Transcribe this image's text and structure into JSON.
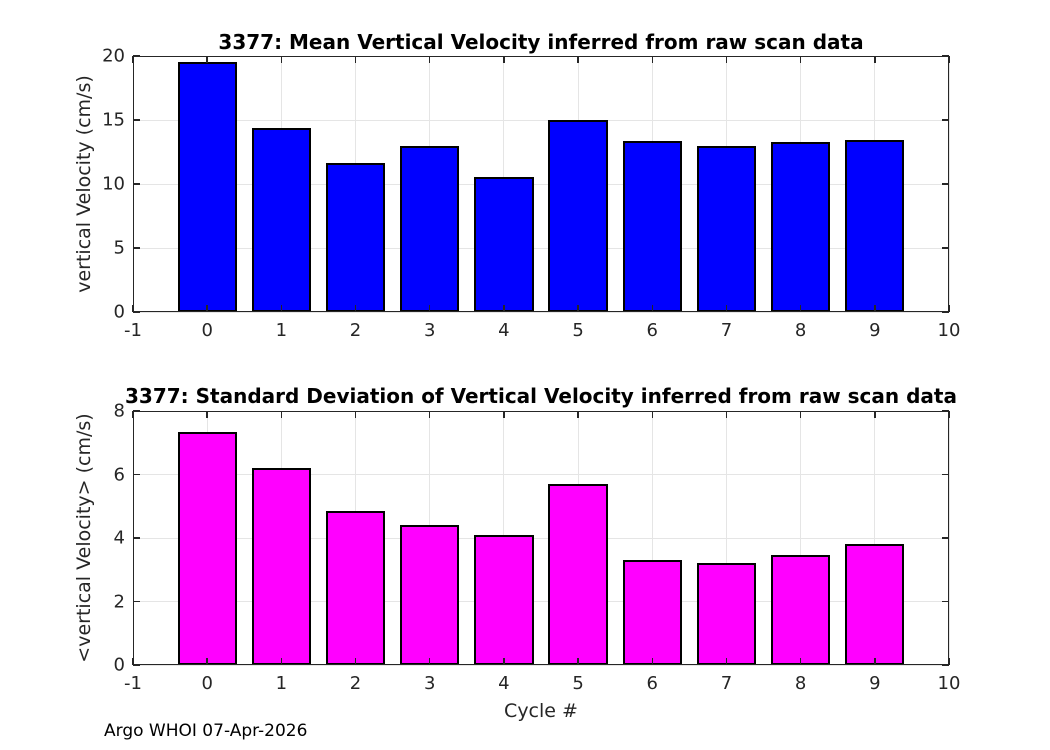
{
  "figure": {
    "footer": "Argo WHOI 07-Apr-2026",
    "background": "#ffffff"
  },
  "colors": {
    "axis": "#262626",
    "grid": "#e5e5e5",
    "tick_label": "#262626",
    "title": "#000000",
    "mean_bar": "#0000ff",
    "std_bar": "#ff00ff",
    "bar_edge": "#000000"
  },
  "chart_data": [
    {
      "type": "bar",
      "title": "3377: Mean Vertical Velocity inferred from raw scan data",
      "ylabel": "vertical Velocity (cm/s)",
      "xlabel": "",
      "categories": [
        0,
        1,
        2,
        3,
        4,
        5,
        6,
        7,
        8,
        9
      ],
      "values": [
        19.5,
        14.4,
        11.65,
        13.0,
        10.55,
        15.0,
        13.35,
        13.0,
        13.25,
        13.45
      ],
      "bar_color": "#0000ff",
      "bar_edge_color": "#000000",
      "bar_width": 0.8,
      "xlim": [
        -1,
        10
      ],
      "ylim": [
        0,
        20
      ],
      "xticks": [
        -1,
        0,
        1,
        2,
        3,
        4,
        5,
        6,
        7,
        8,
        9,
        10
      ],
      "yticks": [
        0,
        5,
        10,
        15,
        20
      ],
      "grid": true,
      "legend": null
    },
    {
      "type": "bar",
      "title": "3377: Standard Deviation of Vertical Velocity inferred from raw scan data",
      "ylabel": "<vertical Velocity> (cm/s)",
      "xlabel": "Cycle #",
      "categories": [
        0,
        1,
        2,
        3,
        4,
        5,
        6,
        7,
        8,
        9
      ],
      "values": [
        7.35,
        6.2,
        4.85,
        4.4,
        4.1,
        5.7,
        3.3,
        3.2,
        3.45,
        3.8
      ],
      "bar_color": "#ff00ff",
      "bar_edge_color": "#000000",
      "bar_width": 0.8,
      "xlim": [
        -1,
        10
      ],
      "ylim": [
        0,
        8
      ],
      "xticks": [
        -1,
        0,
        1,
        2,
        3,
        4,
        5,
        6,
        7,
        8,
        9,
        10
      ],
      "yticks": [
        0,
        2,
        4,
        6,
        8
      ],
      "grid": true,
      "legend": null
    }
  ]
}
